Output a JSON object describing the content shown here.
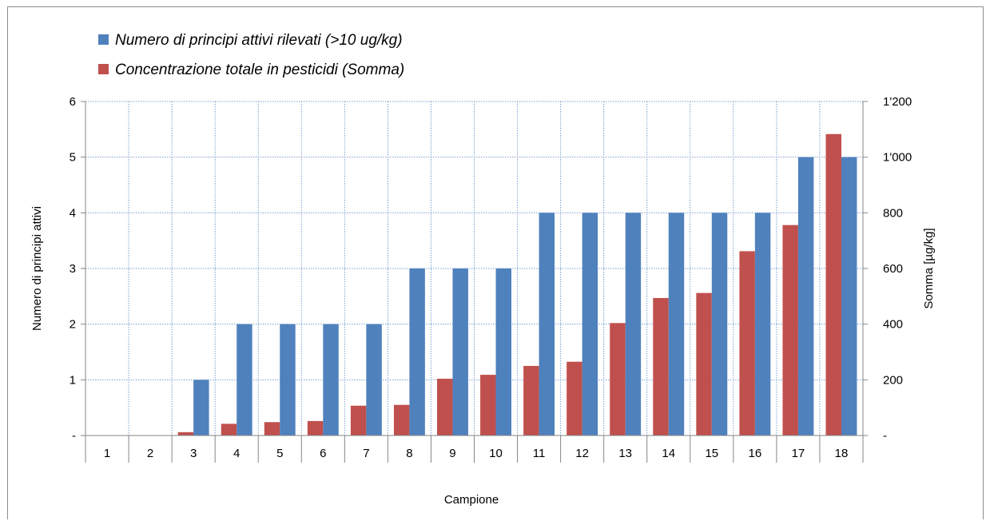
{
  "chart_data": {
    "type": "bar",
    "categories": [
      "1",
      "2",
      "3",
      "4",
      "5",
      "6",
      "7",
      "8",
      "9",
      "10",
      "11",
      "12",
      "13",
      "14",
      "15",
      "16",
      "17",
      "18"
    ],
    "series": [
      {
        "name": "Numero di principi attivi rilevati (>10 ug/kg)",
        "axis": "left",
        "color": "#4f81bd",
        "values": [
          0,
          0,
          1,
          2,
          2,
          2,
          2,
          3,
          3,
          3,
          4,
          4,
          4,
          4,
          4,
          4,
          5,
          5
        ]
      },
      {
        "name": "Concentrazione totale in pesticidi (Somma)",
        "axis": "right",
        "color": "#c0504d",
        "values": [
          0,
          0,
          12,
          42,
          48,
          52,
          107,
          110,
          204,
          218,
          250,
          265,
          404,
          494,
          512,
          662,
          756,
          1083
        ]
      }
    ],
    "xlabel": "Campione",
    "ylabel": "Numero di principi attivi",
    "y2label": "Somma [µg/kg]",
    "ylim": [
      0,
      6
    ],
    "y2lim": [
      0,
      1200
    ],
    "yticks": [
      "-",
      "1",
      "2",
      "3",
      "4",
      "5",
      "6"
    ],
    "y2ticks": [
      "-",
      "200",
      "400",
      "600",
      "800",
      "1'000",
      "1'200"
    ],
    "grid": true,
    "legend_position": "top-left"
  }
}
